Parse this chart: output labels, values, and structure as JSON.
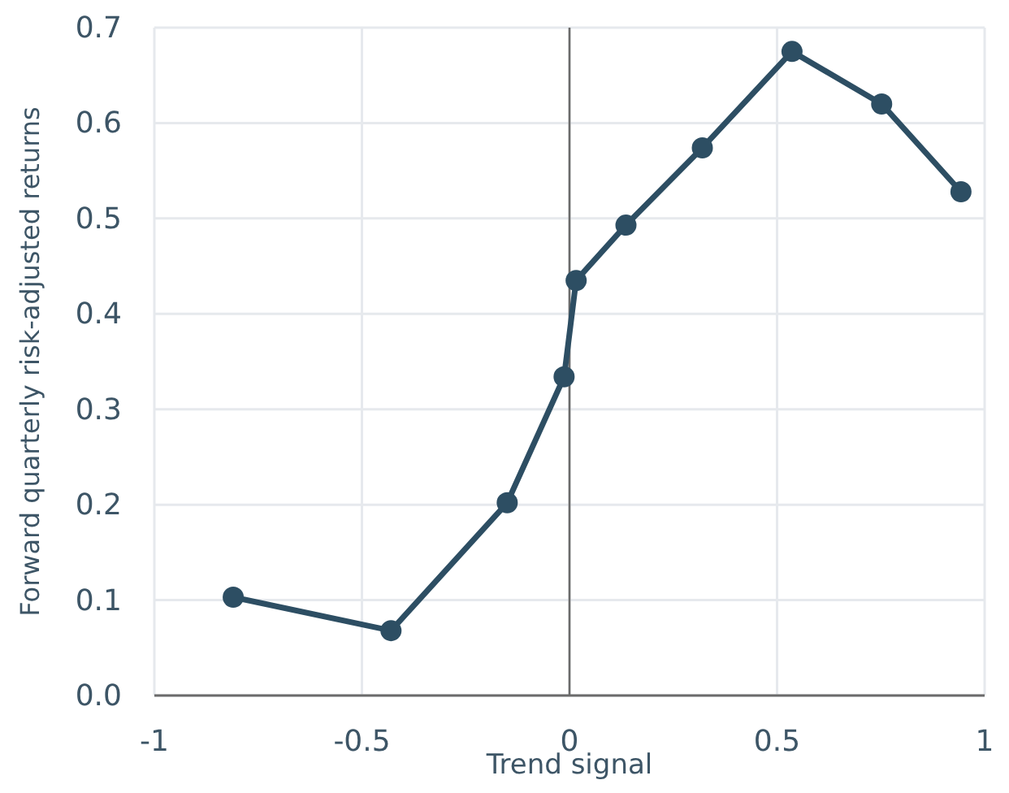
{
  "chart_data": {
    "type": "line",
    "xlabel": "Trend signal",
    "ylabel": "Forward quarterly risk-adjusted returns",
    "x": [
      -0.81,
      -0.43,
      -0.15,
      -0.013,
      0.016,
      0.136,
      0.32,
      0.536,
      0.752,
      0.943
    ],
    "series": [
      {
        "color": "#2d4e63",
        "values": [
          0.103,
          0.068,
          0.202,
          0.334,
          0.435,
          0.493,
          0.574,
          0.675,
          0.62,
          0.528
        ]
      }
    ],
    "xlim": [
      -1,
      1
    ],
    "xticks": [
      -1,
      -0.5,
      0,
      0.5,
      1
    ],
    "ylim": [
      0,
      0.7
    ],
    "yticks": [
      {
        "value": 0,
        "label": "0.0"
      },
      {
        "value": 0.1,
        "label": "0.1"
      },
      {
        "value": 0.2,
        "label": "0.2"
      },
      {
        "value": 0.3,
        "label": "0.3"
      },
      {
        "value": 0.4,
        "label": "0.4"
      },
      {
        "value": 0.5,
        "label": "0.5"
      },
      {
        "value": 0.6,
        "label": "0.6"
      },
      {
        "value": 0.7,
        "label": "0.7"
      }
    ],
    "grid": true,
    "marker": "circle",
    "line_style": "solid",
    "ref_lines": [
      {
        "axis": "x",
        "value": 0,
        "color": "#6b6b6b"
      }
    ]
  }
}
